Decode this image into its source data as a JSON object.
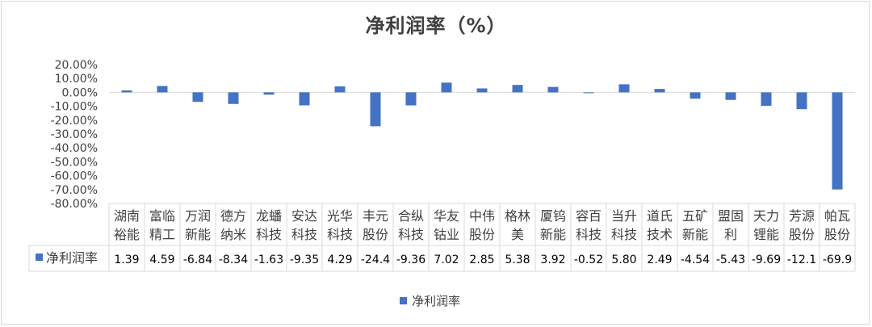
{
  "title": "净利润率（%）",
  "chart_data": {
    "type": "bar",
    "title": "净利润率（%）",
    "categories": [
      [
        "湖南",
        "裕能"
      ],
      [
        "富临",
        "精工"
      ],
      [
        "万润",
        "新能"
      ],
      [
        "德方",
        "纳米"
      ],
      [
        "龙蟠",
        "科技"
      ],
      [
        "安达",
        "科技"
      ],
      [
        "光华",
        "科技"
      ],
      [
        "丰元",
        "股份"
      ],
      [
        "合纵",
        "科技"
      ],
      [
        "华友",
        "钴业"
      ],
      [
        "中伟",
        "股份"
      ],
      [
        "格林",
        "美"
      ],
      [
        "厦钨",
        "新能"
      ],
      [
        "容百",
        "科技"
      ],
      [
        "当升",
        "科技"
      ],
      [
        "道氏",
        "技术"
      ],
      [
        "五矿",
        "新能"
      ],
      [
        "盟固",
        "利"
      ],
      [
        "天力",
        "锂能"
      ],
      [
        "芳源",
        "股份"
      ],
      [
        "帕瓦",
        "股份"
      ]
    ],
    "series": [
      {
        "name": "净利润率",
        "values": [
          1.39,
          4.59,
          -6.84,
          -8.34,
          -1.63,
          -9.35,
          4.29,
          -24.4,
          -9.36,
          7.02,
          2.85,
          5.38,
          3.92,
          -0.52,
          5.8,
          2.49,
          -4.54,
          -5.43,
          -9.69,
          -12.1,
          -69.9
        ],
        "labels": [
          "1.39",
          "4.59",
          "-6.84",
          "-8.34",
          "-1.63",
          "-9.35",
          "4.29",
          "-24.4",
          "-9.36",
          "7.02",
          "2.85",
          "5.38",
          "3.92",
          "-0.52",
          "5.80",
          "2.49",
          "-4.54",
          "-5.43",
          "-9.69",
          "-12.1",
          "-69.9"
        ],
        "color": "#4472c4"
      }
    ],
    "ylim": [
      -80,
      20
    ],
    "yticks": [
      "20.00%",
      "10.00%",
      "0.00%",
      "-10.00%",
      "-20.00%",
      "-30.00%",
      "-40.00%",
      "-50.00%",
      "-60.00%",
      "-70.00%",
      "-80.00%"
    ],
    "ytick_values": [
      20,
      10,
      0,
      -10,
      -20,
      -30,
      -40,
      -50,
      -60,
      -70,
      -80
    ],
    "legend": "bottom",
    "grid": false,
    "data_table": true
  }
}
